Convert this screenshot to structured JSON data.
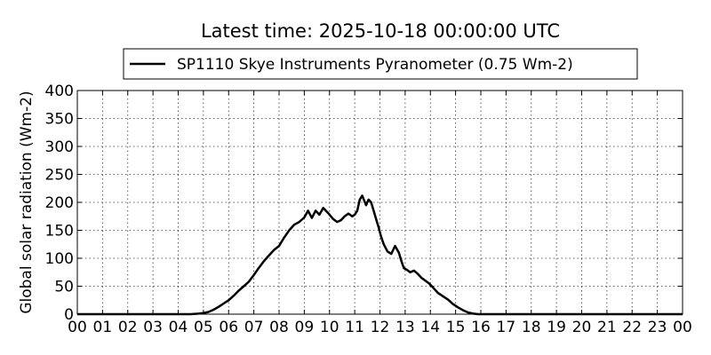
{
  "chart_data": {
    "type": "line",
    "title": "Latest time: 2025-10-18 00:00:00 UTC",
    "xlabel": "",
    "ylabel": "Global solar radiation (Wm-2)",
    "xlim": [
      0,
      24
    ],
    "ylim": [
      0,
      400
    ],
    "x_ticks": [
      0,
      1,
      2,
      3,
      4,
      5,
      6,
      7,
      8,
      9,
      10,
      11,
      12,
      13,
      14,
      15,
      16,
      17,
      18,
      19,
      20,
      21,
      22,
      23,
      24
    ],
    "x_tick_labels": [
      "00",
      "01",
      "02",
      "03",
      "04",
      "05",
      "06",
      "07",
      "08",
      "09",
      "10",
      "11",
      "12",
      "13",
      "14",
      "15",
      "16",
      "17",
      "18",
      "19",
      "20",
      "21",
      "22",
      "23",
      "00"
    ],
    "y_ticks": [
      0,
      50,
      100,
      150,
      200,
      250,
      300,
      350,
      400
    ],
    "y_tick_labels": [
      "0",
      "50",
      "100",
      "150",
      "200",
      "250",
      "300",
      "350",
      "400"
    ],
    "grid": true,
    "legend_position": "top-center (above plot)",
    "series": [
      {
        "name": "SP1110 Skye Instruments Pyranometer (0.75 Wm-2)",
        "color": "#000000",
        "x": [
          0,
          4.5,
          4.8,
          5.0,
          5.2,
          5.4,
          5.6,
          5.8,
          6.0,
          6.2,
          6.4,
          6.6,
          6.8,
          7.0,
          7.2,
          7.4,
          7.6,
          7.8,
          8.0,
          8.2,
          8.4,
          8.6,
          8.8,
          9.0,
          9.15,
          9.3,
          9.45,
          9.6,
          9.75,
          9.9,
          10.0,
          10.15,
          10.3,
          10.45,
          10.6,
          10.75,
          10.9,
          11.0,
          11.1,
          11.2,
          11.3,
          11.45,
          11.55,
          11.65,
          11.75,
          11.85,
          11.95,
          12.05,
          12.15,
          12.3,
          12.45,
          12.6,
          12.75,
          12.85,
          12.95,
          13.05,
          13.2,
          13.35,
          13.5,
          13.65,
          13.8,
          13.95,
          14.1,
          14.3,
          14.5,
          14.7,
          14.9,
          15.1,
          15.3,
          15.5,
          15.7,
          15.9,
          16.1,
          16.3,
          16.5,
          17.0,
          24
        ],
        "values": [
          0,
          0,
          1,
          2,
          4,
          8,
          13,
          19,
          25,
          33,
          42,
          50,
          58,
          70,
          83,
          95,
          105,
          115,
          122,
          137,
          150,
          160,
          165,
          173,
          185,
          172,
          185,
          178,
          190,
          183,
          178,
          170,
          165,
          168,
          175,
          180,
          175,
          178,
          185,
          205,
          212,
          195,
          205,
          200,
          185,
          170,
          155,
          138,
          125,
          112,
          108,
          122,
          110,
          95,
          82,
          80,
          75,
          78,
          72,
          65,
          60,
          55,
          48,
          38,
          32,
          26,
          18,
          12,
          7,
          3,
          1,
          0,
          0,
          0,
          0,
          0,
          0
        ]
      }
    ]
  }
}
